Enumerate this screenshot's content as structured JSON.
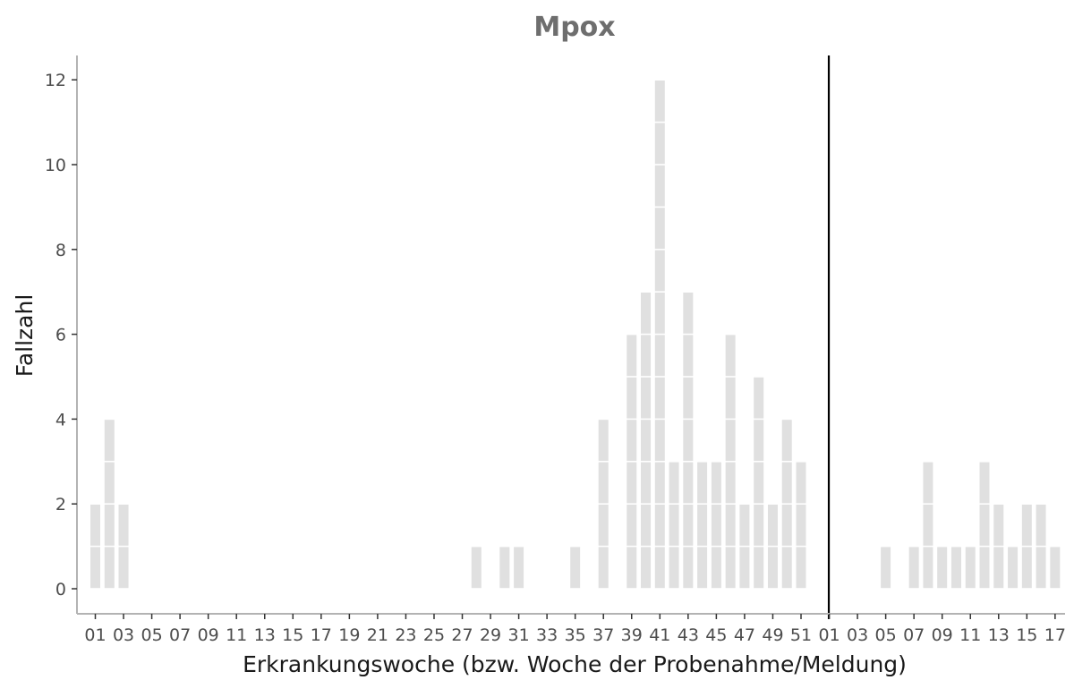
{
  "chart_data": {
    "type": "bar",
    "title": "Mpox",
    "xlabel": "Erkrankungswoche (bzw. Woche der Probenahme/Meldung)",
    "ylabel": "Fallzahl",
    "ylim": [
      0,
      12
    ],
    "y_ticks": [
      0,
      2,
      4,
      6,
      8,
      10,
      12
    ],
    "bar_style": "stacked unit blocks (one block per case)",
    "bar_color": "#e0e0e0",
    "separator_color": "#ffffff",
    "divider_color": "#000000",
    "grid": false,
    "year_divider_after": "Year 1 week 52",
    "years": [
      {
        "weeks": [
          "01",
          "02",
          "03",
          "04",
          "05",
          "06",
          "07",
          "08",
          "09",
          "10",
          "11",
          "12",
          "13",
          "14",
          "15",
          "16",
          "17",
          "18",
          "19",
          "20",
          "21",
          "22",
          "23",
          "24",
          "25",
          "26",
          "27",
          "28",
          "29",
          "30",
          "31",
          "32",
          "33",
          "34",
          "35",
          "36",
          "37",
          "38",
          "39",
          "40",
          "41",
          "42",
          "43",
          "44",
          "45",
          "46",
          "47",
          "48",
          "49",
          "50",
          "51",
          "52"
        ],
        "values": [
          2,
          4,
          2,
          0,
          0,
          0,
          0,
          0,
          0,
          0,
          0,
          0,
          0,
          0,
          0,
          0,
          0,
          0,
          0,
          0,
          0,
          0,
          0,
          0,
          0,
          0,
          0,
          1,
          0,
          1,
          1,
          0,
          0,
          0,
          1,
          0,
          4,
          0,
          6,
          7,
          12,
          3,
          7,
          3,
          3,
          6,
          2,
          5,
          2,
          4,
          3,
          0
        ],
        "tick_labels": [
          "01",
          "03",
          "05",
          "07",
          "09",
          "11",
          "13",
          "15",
          "17",
          "19",
          "21",
          "23",
          "25",
          "27",
          "29",
          "31",
          "33",
          "35",
          "37",
          "39",
          "41",
          "43",
          "45",
          "47",
          "49",
          "51"
        ]
      },
      {
        "weeks": [
          "01",
          "02",
          "03",
          "04",
          "05",
          "06",
          "07",
          "08",
          "09",
          "10",
          "11",
          "12",
          "13",
          "14",
          "15",
          "16",
          "17"
        ],
        "values": [
          0,
          0,
          0,
          0,
          1,
          0,
          1,
          3,
          1,
          1,
          1,
          3,
          2,
          1,
          2,
          2,
          1
        ],
        "tick_labels": [
          "01",
          "03",
          "05",
          "07",
          "09",
          "11",
          "13",
          "15",
          "17"
        ]
      }
    ]
  }
}
